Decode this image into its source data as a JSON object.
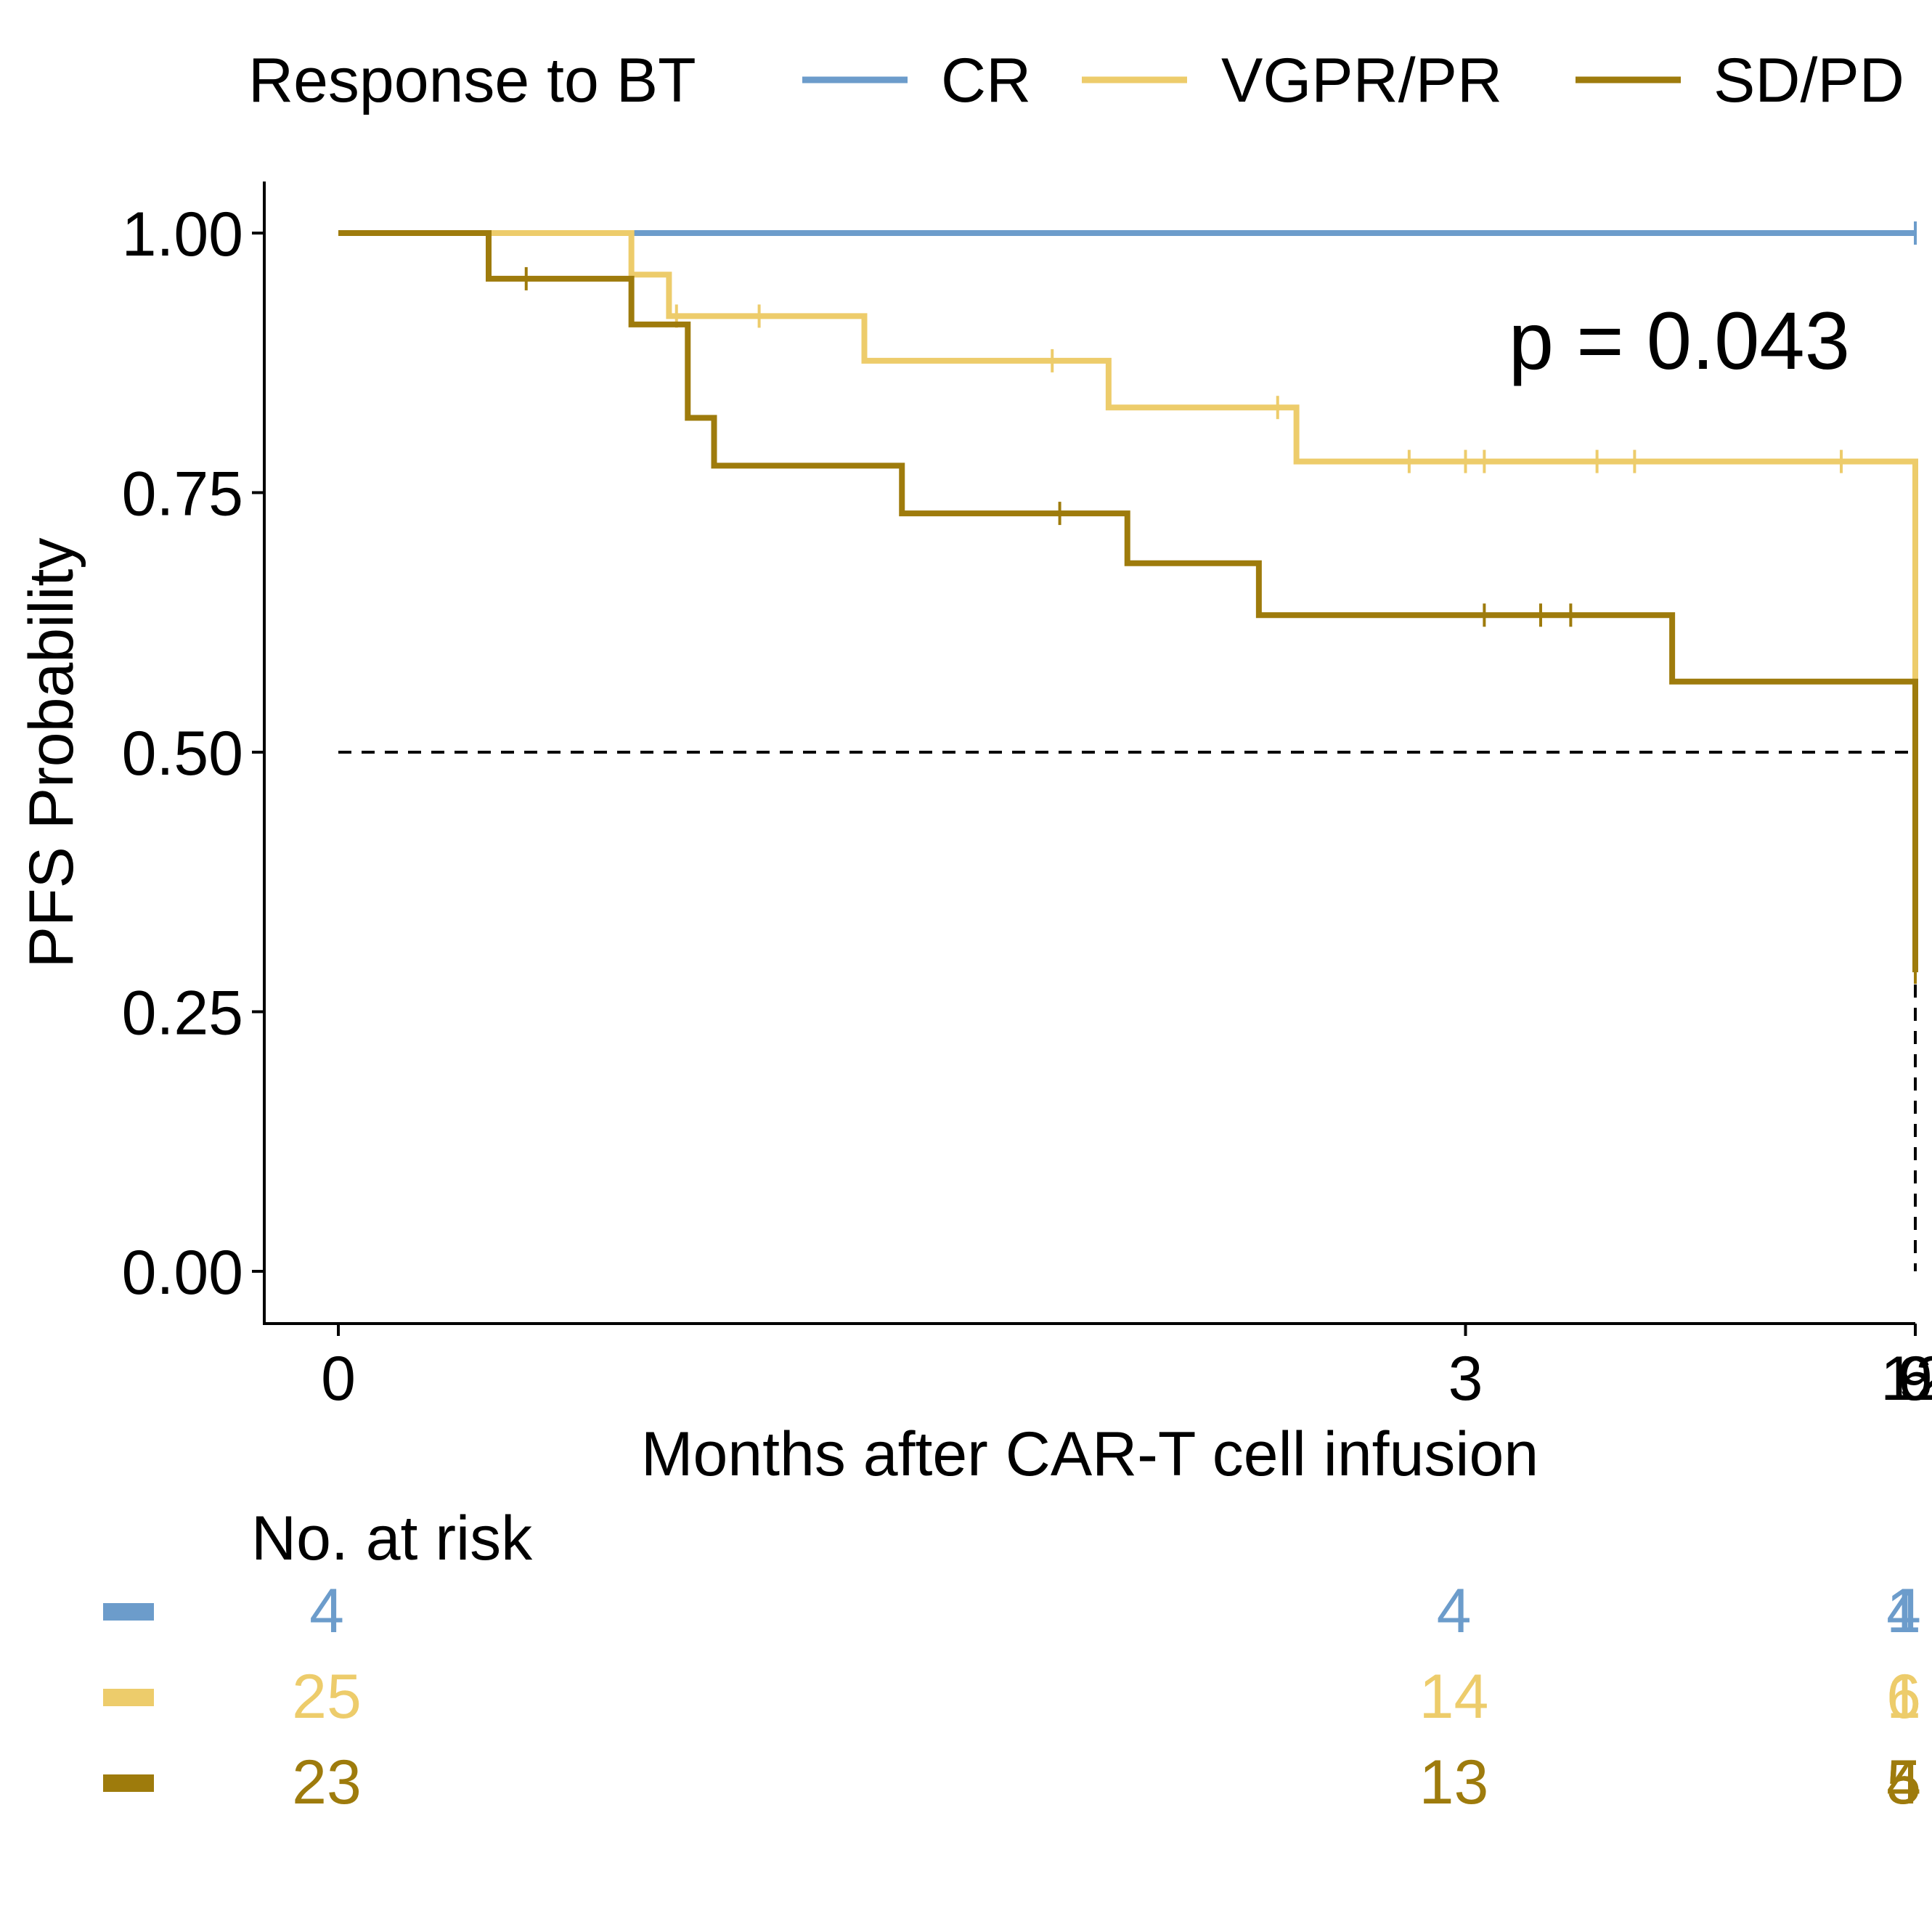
{
  "chart_data": {
    "type": "line",
    "subtype": "kaplan-meier",
    "xlabel": "Months after CAR-T cell infusion",
    "ylabel": "PFS Probability",
    "xlim": [
      -1,
      12.2
    ],
    "ylim": [
      -0.05,
      1.05
    ],
    "x_ticks": [
      0,
      3,
      6,
      9,
      12
    ],
    "x_tick_labels": [
      "0",
      "3",
      "6",
      "9",
      "12"
    ],
    "y_ticks": [
      0,
      0.25,
      0.5,
      0.75,
      1
    ],
    "y_tick_labels": [
      "0.00",
      "0.25",
      "0.50",
      "0.75",
      "1.00"
    ],
    "grid": false,
    "legend": {
      "title": "Response to BT",
      "position": "top",
      "entries": [
        "CR",
        "VGPR/PR",
        "SD/PD"
      ]
    },
    "annotation": "p = 0.043",
    "median_line": {
      "y": 0.5,
      "x_end": 10.4,
      "drops": [
        5.8,
        10.4
      ]
    },
    "series": [
      {
        "name": "CR",
        "color": "#6c9ccb",
        "steps": [
          [
            0,
            1.0
          ],
          [
            12.5,
            1.0
          ]
        ],
        "censors": [
          [
            6.3,
            1.0
          ],
          [
            8.35,
            1.0
          ]
        ]
      },
      {
        "name": "VGPR/PR",
        "color": "#edcc6b",
        "steps": [
          [
            0,
            1.0
          ],
          [
            0.78,
            0.96
          ],
          [
            0.88,
            0.92
          ],
          [
            1.4,
            0.877
          ],
          [
            2.05,
            0.832
          ],
          [
            2.55,
            0.78
          ],
          [
            5.22,
            0.703
          ],
          [
            10.4,
            0.468
          ],
          [
            12.15,
            0.468
          ]
        ],
        "censors": [
          [
            0.9,
            0.92
          ],
          [
            1.12,
            0.92
          ],
          [
            1.9,
            0.877
          ],
          [
            2.5,
            0.832
          ],
          [
            2.85,
            0.78
          ],
          [
            3.0,
            0.78
          ],
          [
            3.05,
            0.78
          ],
          [
            3.35,
            0.78
          ],
          [
            3.45,
            0.78
          ],
          [
            4.0,
            0.78
          ],
          [
            5.6,
            0.703
          ],
          [
            5.85,
            0.703
          ],
          [
            5.9,
            0.703
          ],
          [
            9.45,
            0.703
          ],
          [
            9.9,
            0.703
          ],
          [
            10.25,
            0.703
          ],
          [
            11.85,
            0.468
          ],
          [
            12.1,
            0.468
          ]
        ]
      },
      {
        "name": "SD/PD",
        "color": "#9e7b0c",
        "steps": [
          [
            0,
            1.0
          ],
          [
            0.4,
            0.956
          ],
          [
            0.78,
            0.912
          ],
          [
            0.93,
            0.822
          ],
          [
            1.0,
            0.776
          ],
          [
            1.5,
            0.73
          ],
          [
            2.1,
            0.682
          ],
          [
            2.45,
            0.632
          ],
          [
            3.55,
            0.568
          ],
          [
            4.4,
            0.505
          ],
          [
            5.8,
            0.435
          ],
          [
            6.02,
            0.36
          ],
          [
            9.1,
            0.288
          ],
          [
            12.5,
            0.288
          ]
        ],
        "censors": [
          [
            0.5,
            0.956
          ],
          [
            1.92,
            0.73
          ],
          [
            3.05,
            0.632
          ],
          [
            3.2,
            0.632
          ],
          [
            3.28,
            0.632
          ],
          [
            5.35,
            0.505
          ],
          [
            12.25,
            0.288
          ]
        ]
      }
    ],
    "risk_table": {
      "title": "No. at risk",
      "times": [
        0,
        3,
        6,
        9,
        12
      ],
      "rows": [
        {
          "name": "CR",
          "color": "#6c9ccb",
          "counts": [
            "4",
            "4",
            "4",
            "1",
            "1"
          ]
        },
        {
          "name": "VGPR/PR",
          "color": "#edcc6b",
          "counts": [
            "25",
            "14",
            "6",
            "6",
            "1"
          ]
        },
        {
          "name": "SD/PD",
          "color": "#9e7b0c",
          "counts": [
            "23",
            "13",
            "5",
            "5",
            "4"
          ]
        }
      ]
    }
  }
}
